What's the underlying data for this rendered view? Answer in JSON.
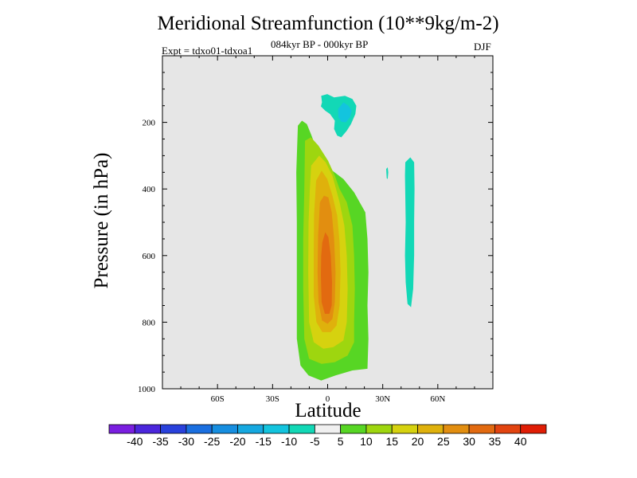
{
  "chart_data": {
    "type": "heatmap",
    "title": "Meridional Streamfunction (10**9kg/m-2)",
    "subtitle": "084kyr BP - 000kyr BP",
    "experiment": "Expt = tdxo01-tdxoa1",
    "season": "DJF",
    "xlabel": "Latitude",
    "ylabel": "Pressure (in hPa)",
    "xlim": [
      -90,
      90
    ],
    "ylim": [
      1000,
      0
    ],
    "x_ticks": [
      {
        "value": -60,
        "label": "60S"
      },
      {
        "value": -30,
        "label": "30S"
      },
      {
        "value": 0,
        "label": "0"
      },
      {
        "value": 30,
        "label": "30N"
      },
      {
        "value": 60,
        "label": "60N"
      }
    ],
    "y_ticks": [
      {
        "value": 200,
        "label": "200"
      },
      {
        "value": 400,
        "label": "400"
      },
      {
        "value": 600,
        "label": "600"
      },
      {
        "value": 800,
        "label": "800"
      },
      {
        "value": 1000,
        "label": "1000"
      }
    ],
    "background_color": "#e6e6e6",
    "colorbar": {
      "labels": [
        "-40",
        "-35",
        "-30",
        "-25",
        "-20",
        "-15",
        "-10",
        "-5",
        "5",
        "10",
        "15",
        "20",
        "25",
        "30",
        "35",
        "40"
      ],
      "colors": [
        "#7a1fe0",
        "#4b26dc",
        "#2941dc",
        "#1a6fe0",
        "#168ee0",
        "#15a8e0",
        "#13c4de",
        "#12d8b6",
        "#f0f0f0",
        "#57d624",
        "#9ed60f",
        "#d6d20f",
        "#dfb10c",
        "#e28e10",
        "#e26a10",
        "#e24410",
        "#e01d05"
      ]
    },
    "contours": [
      {
        "level": "5 to 10",
        "color": "#57d624",
        "points": [
          [
            -16.2,
            210
          ],
          [
            -14,
            195
          ],
          [
            -11.3,
            205
          ],
          [
            -9.1,
            235
          ],
          [
            -5,
            295
          ],
          [
            -1.9,
            320
          ],
          [
            2.6,
            345
          ],
          [
            8.6,
            370
          ],
          [
            14.4,
            410
          ],
          [
            20.5,
            470
          ],
          [
            21.7,
            550
          ],
          [
            22.2,
            650
          ],
          [
            21.7,
            750
          ],
          [
            22.2,
            850
          ],
          [
            21.7,
            940
          ],
          [
            13.5,
            945
          ],
          [
            4.3,
            960
          ],
          [
            -3.5,
            975
          ],
          [
            -10.4,
            960
          ],
          [
            -14.8,
            930
          ],
          [
            -16.8,
            850
          ],
          [
            -16.8,
            700
          ],
          [
            -16.8,
            500
          ],
          [
            -17.1,
            350
          ]
        ]
      },
      {
        "level": "10 to 15",
        "color": "#9ed60f",
        "points": [
          [
            -12.3,
            255
          ],
          [
            -9.1,
            245
          ],
          [
            -5,
            270
          ],
          [
            0.2,
            315
          ],
          [
            3.9,
            360
          ],
          [
            6.5,
            400
          ],
          [
            10.4,
            440
          ],
          [
            13.5,
            510
          ],
          [
            14.4,
            600
          ],
          [
            14.8,
            700
          ],
          [
            14.4,
            800
          ],
          [
            14.4,
            860
          ],
          [
            10.9,
            900
          ],
          [
            3.9,
            920
          ],
          [
            -3.3,
            925
          ],
          [
            -10.1,
            910
          ],
          [
            -12.7,
            850
          ],
          [
            -13.3,
            700
          ],
          [
            -13.3,
            550
          ],
          [
            -12.7,
            400
          ]
        ]
      },
      {
        "level": "15 to 20",
        "color": "#d6d20f",
        "points": [
          [
            -9,
            330
          ],
          [
            -4.6,
            300
          ],
          [
            -1.1,
            320
          ],
          [
            2.6,
            360
          ],
          [
            6.5,
            440
          ],
          [
            9.1,
            510
          ],
          [
            10.4,
            600
          ],
          [
            10.9,
            700
          ],
          [
            10.4,
            800
          ],
          [
            8.6,
            855
          ],
          [
            3.1,
            875
          ],
          [
            -2.4,
            880
          ],
          [
            -7.6,
            860
          ],
          [
            -10.1,
            800
          ],
          [
            -10.6,
            650
          ],
          [
            -10.4,
            500
          ],
          [
            -9.7,
            400
          ]
        ]
      },
      {
        "level": "20 to 25",
        "color": "#dfb10c",
        "points": [
          [
            -6.3,
            375
          ],
          [
            -3.3,
            345
          ],
          [
            -0.2,
            370
          ],
          [
            2.6,
            420
          ],
          [
            5.2,
            480
          ],
          [
            6.5,
            560
          ],
          [
            7,
            650
          ],
          [
            6.5,
            750
          ],
          [
            4.8,
            810
          ],
          [
            1.7,
            830
          ],
          [
            -2.9,
            830
          ],
          [
            -6.1,
            800
          ],
          [
            -7.6,
            720
          ],
          [
            -7.6,
            600
          ],
          [
            -7.4,
            480
          ]
        ]
      },
      {
        "level": "25 to 30",
        "color": "#e28e10",
        "points": [
          [
            -4.2,
            440
          ],
          [
            -2,
            420
          ],
          [
            0.4,
            425
          ],
          [
            2.2,
            470
          ],
          [
            3.5,
            550
          ],
          [
            4.3,
            650
          ],
          [
            3.9,
            740
          ],
          [
            2.6,
            790
          ],
          [
            0.0,
            805
          ],
          [
            -3.1,
            795
          ],
          [
            -5,
            740
          ],
          [
            -5.5,
            650
          ],
          [
            -5.2,
            540
          ]
        ]
      },
      {
        "level": "30 to 35",
        "color": "#e26a10",
        "points": [
          [
            -2.9,
            560
          ],
          [
            -1.3,
            530
          ],
          [
            0.4,
            545
          ],
          [
            1.7,
            600
          ],
          [
            2.4,
            680
          ],
          [
            2.2,
            750
          ],
          [
            0.9,
            775
          ],
          [
            -1.5,
            775
          ],
          [
            -3.3,
            740
          ],
          [
            -3.7,
            660
          ],
          [
            -3.5,
            600
          ]
        ]
      },
      {
        "level": "-10 to -5",
        "color": "#12d8b6",
        "points": [
          [
            -3.5,
            120
          ],
          [
            -0.2,
            115
          ],
          [
            3.5,
            125
          ],
          [
            9.4,
            120
          ],
          [
            13.5,
            130
          ],
          [
            15.6,
            150
          ],
          [
            15.1,
            175
          ],
          [
            12.7,
            205
          ],
          [
            10.4,
            225
          ],
          [
            7.4,
            245
          ],
          [
            5.2,
            240
          ],
          [
            3.5,
            220
          ],
          [
            3.9,
            195
          ],
          [
            1.3,
            175
          ],
          [
            -1.3,
            165
          ],
          [
            -3.7,
            152
          ],
          [
            -3.1,
            140
          ]
        ]
      },
      {
        "level": "-15 to -10",
        "color": "#13c4de",
        "points": [
          [
            5.7,
            160
          ],
          [
            8.6,
            140
          ],
          [
            11.3,
            150
          ],
          [
            13.1,
            165
          ],
          [
            12.2,
            185
          ],
          [
            9.9,
            200
          ],
          [
            7.4,
            198
          ],
          [
            5.9,
            185
          ]
        ]
      },
      {
        "level": "-10 to -5",
        "color": "#12d8b6",
        "points": [
          [
            42.3,
            320
          ],
          [
            45,
            305
          ],
          [
            47.1,
            320
          ],
          [
            47.3,
            400
          ],
          [
            47.1,
            500
          ],
          [
            47.1,
            600
          ],
          [
            46.6,
            700
          ],
          [
            45.4,
            755
          ],
          [
            43.5,
            745
          ],
          [
            42.5,
            680
          ],
          [
            42.1,
            600
          ],
          [
            42.5,
            500
          ],
          [
            42.3,
            420
          ],
          [
            42.1,
            360
          ]
        ]
      },
      {
        "level": "-10 to -5",
        "color": "#12d8b6",
        "points": [
          [
            31.9,
            340
          ],
          [
            32.7,
            335
          ],
          [
            33,
            350
          ],
          [
            32.7,
            370
          ],
          [
            32.2,
            368
          ]
        ]
      }
    ]
  }
}
